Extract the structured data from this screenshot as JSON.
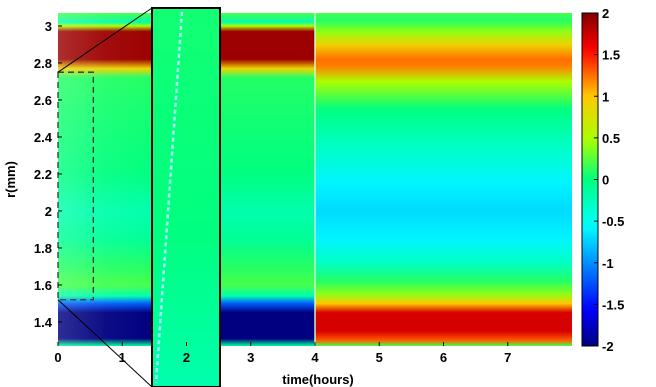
{
  "chart_data": {
    "type": "heatmap",
    "title": "",
    "xlabel": "time(hours)",
    "ylabel": "r(mm)",
    "xlim": [
      0,
      8
    ],
    "ylim": [
      1.27,
      3.07
    ],
    "x_ticks": [
      "0",
      "1",
      "2",
      "3",
      "4",
      "5",
      "6",
      "7"
    ],
    "y_ticks": [
      "1.4",
      "1.6",
      "1.8",
      "2",
      "2.2",
      "2.4",
      "2.6",
      "2.8",
      "3"
    ],
    "colorbar": {
      "range": [
        -2,
        2
      ],
      "ticks": [
        "2",
        "1.5",
        "1",
        "0.5",
        "0",
        "-0.5",
        "-1",
        "-1.5",
        "-2"
      ],
      "colormap": "jet"
    },
    "regions": [
      {
        "t_range": [
          0,
          4
        ],
        "profile": [
          {
            "r": 1.27,
            "v": -0.1
          },
          {
            "r": 1.31,
            "v": -2.0
          },
          {
            "r": 1.45,
            "v": -2.0
          },
          {
            "r": 1.5,
            "v": -1.2
          },
          {
            "r": 1.54,
            "v": -0.2
          },
          {
            "r": 1.6,
            "v": 0.2
          },
          {
            "r": 1.7,
            "v": 0.1
          },
          {
            "r": 1.85,
            "v": -0.1
          },
          {
            "r": 2.0,
            "v": -0.2
          },
          {
            "r": 2.2,
            "v": 0.0
          },
          {
            "r": 2.5,
            "v": 0.05
          },
          {
            "r": 2.72,
            "v": 0.1
          },
          {
            "r": 2.77,
            "v": 0.9
          },
          {
            "r": 2.82,
            "v": 1.9
          },
          {
            "r": 2.97,
            "v": 1.9
          },
          {
            "r": 3.0,
            "v": 0.5
          },
          {
            "r": 3.02,
            "v": -0.2
          },
          {
            "r": 3.07,
            "v": 0.2
          }
        ]
      },
      {
        "t_range": [
          4,
          8
        ],
        "profile": [
          {
            "r": 1.27,
            "v": 0.2
          },
          {
            "r": 1.3,
            "v": 1.3
          },
          {
            "r": 1.35,
            "v": 1.7
          },
          {
            "r": 1.45,
            "v": 1.7
          },
          {
            "r": 1.5,
            "v": 1.0
          },
          {
            "r": 1.55,
            "v": 0.4
          },
          {
            "r": 1.62,
            "v": 0.1
          },
          {
            "r": 1.72,
            "v": -0.3
          },
          {
            "r": 1.85,
            "v": -0.6
          },
          {
            "r": 2.0,
            "v": -0.7
          },
          {
            "r": 2.15,
            "v": -0.6
          },
          {
            "r": 2.35,
            "v": -0.3
          },
          {
            "r": 2.55,
            "v": 0.0
          },
          {
            "r": 2.7,
            "v": 0.5
          },
          {
            "r": 2.78,
            "v": 1.2
          },
          {
            "r": 2.82,
            "v": 1.25
          },
          {
            "r": 2.9,
            "v": 0.9
          },
          {
            "r": 2.97,
            "v": 0.4
          },
          {
            "r": 3.03,
            "v": 0.1
          },
          {
            "r": 3.07,
            "v": 0.2
          }
        ]
      }
    ],
    "inset": {
      "t_range": [
        0,
        0.55
      ],
      "r_range": [
        1.52,
        2.75
      ],
      "values": [
        {
          "r": 1.52,
          "v": -0.2
        },
        {
          "r": 2.0,
          "v": 0.0
        },
        {
          "r": 2.75,
          "v": 0.05
        }
      ]
    },
    "colors": {
      "background": "#ffffff",
      "axis": "#000000",
      "guide_dashes": "#333333",
      "inset_trace": "#a8f8ff"
    }
  }
}
